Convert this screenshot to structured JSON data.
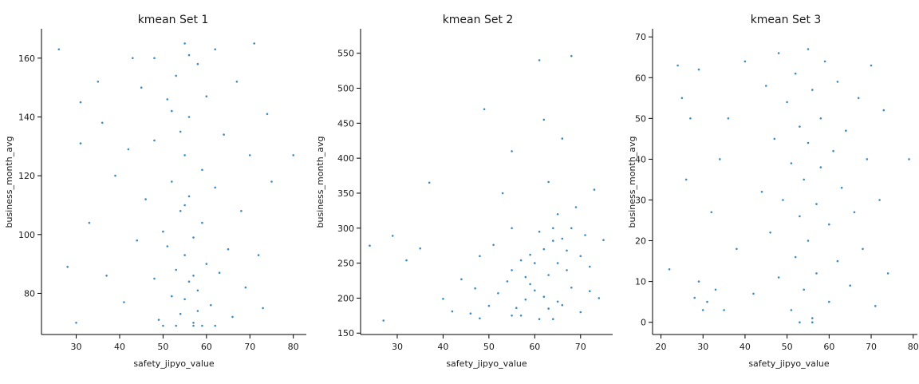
{
  "colors": {
    "marker": "#1f77b4",
    "axes": "#000000",
    "text": "#1a1a1a"
  },
  "chart_data": [
    {
      "type": "scatter",
      "title": "kmean Set 1",
      "xlabel": "safety_jipyo_value",
      "ylabel": "business_month_avg",
      "xlim": [
        22,
        83
      ],
      "ylim": [
        66,
        170
      ],
      "xticks": [
        30,
        40,
        50,
        60,
        70,
        80
      ],
      "yticks": [
        80,
        100,
        120,
        140,
        160
      ],
      "xtick_labels": [
        "30",
        "40",
        "50",
        "60",
        "70",
        "80"
      ],
      "ytick_labels": [
        "80",
        "100",
        "120",
        "140",
        "160"
      ],
      "grid": false,
      "series": [
        {
          "points": [
            [
              26,
              163
            ],
            [
              31,
              145
            ],
            [
              31,
              131
            ],
            [
              33,
              104
            ],
            [
              35,
              152
            ],
            [
              36,
              138
            ],
            [
              28,
              89
            ],
            [
              30,
              70
            ],
            [
              42,
              129
            ],
            [
              44,
              98
            ],
            [
              39,
              120
            ],
            [
              37,
              86
            ],
            [
              45,
              150
            ],
            [
              41,
              77
            ],
            [
              46,
              112
            ],
            [
              43,
              160
            ],
            [
              48,
              85
            ],
            [
              48,
              132
            ],
            [
              48,
              160
            ],
            [
              49,
              71
            ],
            [
              50,
              101
            ],
            [
              51,
              96
            ],
            [
              51,
              146
            ],
            [
              52,
              79
            ],
            [
              52,
              118
            ],
            [
              53,
              88
            ],
            [
              53,
              154
            ],
            [
              54,
              73
            ],
            [
              54,
              108
            ],
            [
              55,
              165
            ],
            [
              55,
              93
            ],
            [
              55,
              127
            ],
            [
              55,
              78
            ],
            [
              56,
              140
            ],
            [
              56,
              84
            ],
            [
              56,
              113
            ],
            [
              57,
              99
            ],
            [
              57,
              70
            ],
            [
              58,
              158
            ],
            [
              58,
              81
            ],
            [
              59,
              122
            ],
            [
              59,
              104
            ],
            [
              60,
              90
            ],
            [
              60,
              147
            ],
            [
              61,
              76
            ],
            [
              62,
              116
            ],
            [
              62,
              163
            ],
            [
              63,
              87
            ],
            [
              64,
              134
            ],
            [
              65,
              95
            ],
            [
              66,
              72
            ],
            [
              67,
              152
            ],
            [
              68,
              108
            ],
            [
              69,
              82
            ],
            [
              70,
              127
            ],
            [
              71,
              165
            ],
            [
              72,
              93
            ],
            [
              73,
              75
            ],
            [
              74,
              141
            ],
            [
              75,
              118
            ],
            [
              80,
              127
            ],
            [
              57,
              69
            ],
            [
              53,
              69
            ],
            [
              50,
              69
            ],
            [
              59,
              69
            ],
            [
              62,
              69
            ],
            [
              55,
              110
            ],
            [
              54,
              135
            ],
            [
              56,
              161
            ],
            [
              57,
              86
            ],
            [
              58,
              74
            ],
            [
              52,
              142
            ]
          ]
        }
      ]
    },
    {
      "type": "scatter",
      "title": "kmean Set 2",
      "xlabel": "safety_jipyo_value",
      "ylabel": "business_month_avg",
      "xlim": [
        22,
        77
      ],
      "ylim": [
        148,
        585
      ],
      "xticks": [
        30,
        40,
        50,
        60,
        70
      ],
      "yticks": [
        150,
        200,
        250,
        300,
        350,
        400,
        450,
        500,
        550
      ],
      "xtick_labels": [
        "30",
        "40",
        "50",
        "60",
        "70"
      ],
      "ytick_labels": [
        "150",
        "200",
        "250",
        "300",
        "350",
        "400",
        "450",
        "500",
        "550"
      ],
      "grid": false,
      "series": [
        {
          "points": [
            [
              24,
              275
            ],
            [
              27,
              168
            ],
            [
              29,
              289
            ],
            [
              32,
              254
            ],
            [
              35,
              271
            ],
            [
              37,
              365
            ],
            [
              40,
              199
            ],
            [
              42,
              181
            ],
            [
              44,
              227
            ],
            [
              46,
              178
            ],
            [
              47,
              214
            ],
            [
              48,
              171
            ],
            [
              48,
              260
            ],
            [
              49,
              470
            ],
            [
              50,
              189
            ],
            [
              51,
              276
            ],
            [
              52,
              207
            ],
            [
              53,
              350
            ],
            [
              54,
              224
            ],
            [
              55,
              410
            ],
            [
              55,
              300
            ],
            [
              55,
              240
            ],
            [
              55,
              175
            ],
            [
              56,
              186
            ],
            [
              57,
              254
            ],
            [
              58,
              198
            ],
            [
              59,
              262
            ],
            [
              60,
              211
            ],
            [
              61,
              295
            ],
            [
              61,
              540
            ],
            [
              62,
              202
            ],
            [
              62,
              455
            ],
            [
              63,
              233
            ],
            [
              63,
              366
            ],
            [
              64,
              170
            ],
            [
              64,
              282
            ],
            [
              65,
              250
            ],
            [
              65,
              320
            ],
            [
              66,
              190
            ],
            [
              66,
              428
            ],
            [
              67,
              268
            ],
            [
              68,
              546
            ],
            [
              68,
              215
            ],
            [
              69,
              330
            ],
            [
              70,
              180
            ],
            [
              71,
              290
            ],
            [
              72,
              245
            ],
            [
              73,
              355
            ],
            [
              74,
              200
            ],
            [
              75,
              283
            ],
            [
              60,
              250
            ],
            [
              58,
              230
            ],
            [
              62,
              270
            ],
            [
              64,
              300
            ],
            [
              66,
              285
            ],
            [
              59,
              220
            ],
            [
              57,
              175
            ],
            [
              63,
              185
            ],
            [
              65,
              195
            ],
            [
              61,
              170
            ],
            [
              67,
              240
            ],
            [
              68,
              300
            ],
            [
              70,
              260
            ],
            [
              72,
              210
            ]
          ]
        }
      ]
    },
    {
      "type": "scatter",
      "title": "kmean Set 3",
      "xlabel": "safety_jipyo_value",
      "ylabel": "business_month_avg",
      "xlim": [
        18,
        81
      ],
      "ylim": [
        -3,
        72
      ],
      "xticks": [
        20,
        30,
        40,
        50,
        60,
        70,
        80
      ],
      "yticks": [
        0,
        10,
        20,
        30,
        40,
        50,
        60,
        70
      ],
      "xtick_labels": [
        "20",
        "30",
        "40",
        "50",
        "60",
        "70",
        "80"
      ],
      "ytick_labels": [
        "0",
        "10",
        "20",
        "30",
        "40",
        "50",
        "60",
        "70"
      ],
      "grid": false,
      "series": [
        {
          "points": [
            [
              22,
              13
            ],
            [
              24,
              63
            ],
            [
              25,
              55
            ],
            [
              27,
              50
            ],
            [
              26,
              35
            ],
            [
              29,
              62
            ],
            [
              28,
              6
            ],
            [
              30,
              3
            ],
            [
              32,
              27
            ],
            [
              34,
              40
            ],
            [
              36,
              50
            ],
            [
              38,
              18
            ],
            [
              40,
              64
            ],
            [
              42,
              7
            ],
            [
              44,
              32
            ],
            [
              45,
              58
            ],
            [
              46,
              22
            ],
            [
              47,
              45
            ],
            [
              48,
              11
            ],
            [
              48,
              66
            ],
            [
              49,
              30
            ],
            [
              50,
              54
            ],
            [
              51,
              3
            ],
            [
              51,
              39
            ],
            [
              52,
              16
            ],
            [
              52,
              61
            ],
            [
              53,
              26
            ],
            [
              53,
              48
            ],
            [
              54,
              8
            ],
            [
              54,
              35
            ],
            [
              55,
              67
            ],
            [
              55,
              20
            ],
            [
              55,
              44
            ],
            [
              56,
              1
            ],
            [
              56,
              57
            ],
            [
              57,
              29
            ],
            [
              57,
              12
            ],
            [
              58,
              50
            ],
            [
              58,
              38
            ],
            [
              59,
              64
            ],
            [
              60,
              24
            ],
            [
              60,
              5
            ],
            [
              61,
              42
            ],
            [
              62,
              15
            ],
            [
              62,
              59
            ],
            [
              63,
              33
            ],
            [
              64,
              47
            ],
            [
              65,
              9
            ],
            [
              66,
              27
            ],
            [
              67,
              55
            ],
            [
              68,
              18
            ],
            [
              69,
              40
            ],
            [
              70,
              63
            ],
            [
              71,
              4
            ],
            [
              72,
              30
            ],
            [
              73,
              52
            ],
            [
              74,
              12
            ],
            [
              79,
              40
            ],
            [
              35,
              3
            ],
            [
              33,
              8
            ],
            [
              31,
              5
            ],
            [
              29,
              10
            ],
            [
              53,
              0
            ],
            [
              56,
              0
            ]
          ]
        }
      ]
    }
  ]
}
